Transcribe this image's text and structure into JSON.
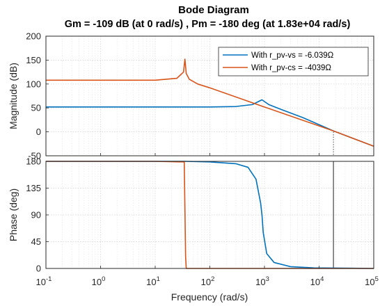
{
  "chart_data": {
    "type": "line",
    "title": "Bode Diagram",
    "subtitle": "Gm = -109 dB (at 0 rad/s) ,  Pm = -180 deg (at 1.83e+04 rad/s)",
    "xlabel": "Frequency  (rad/s)",
    "x_scale": "log",
    "xlim": [
      0.1,
      100000
    ],
    "x_tick_labels": [
      {
        "base": "10",
        "exp": "-1"
      },
      {
        "base": "10",
        "exp": "0"
      },
      {
        "base": "10",
        "exp": "1"
      },
      {
        "base": "10",
        "exp": "2"
      },
      {
        "base": "10",
        "exp": "3"
      },
      {
        "base": "10",
        "exp": "4"
      },
      {
        "base": "10",
        "exp": "5"
      }
    ],
    "grid": true,
    "legend_position": "top-right",
    "colors": {
      "series1": "#0072BD",
      "series2": "#D95319",
      "marker": "#333333",
      "grid": "#cfcfcf"
    },
    "panels": [
      {
        "name": "magnitude",
        "ylabel": "Magnitude (dB)",
        "ylim": [
          -50,
          200
        ],
        "yticks": [
          "-50",
          "0",
          "50",
          "100",
          "150",
          "200"
        ],
        "series": [
          {
            "name": "With r_pv-vs = -6.039Ω",
            "x": [
              0.1,
              1,
              10,
              100,
              300,
              600,
              900,
              1200,
              2000,
              5000,
              18300,
              100000
            ],
            "y": [
              52,
              52,
              52,
              52,
              53,
              57,
              67,
              57,
              47,
              30,
              2,
              -30
            ]
          },
          {
            "name": "With r_pv-cs = -4039Ω",
            "x": [
              0.1,
              1,
              10,
              25,
              33,
              35,
              37,
              42,
              60,
              100,
              1000,
              18300,
              100000
            ],
            "y": [
              108,
              108,
              108,
              112,
              125,
              152,
              122,
              110,
              100,
              92,
              52,
              2,
              -30
            ]
          }
        ]
      },
      {
        "name": "phase",
        "ylabel": "Phase (deg)",
        "ylim": [
          0,
          180
        ],
        "yticks": [
          "0",
          "45",
          "90",
          "135",
          "180"
        ],
        "series": [
          {
            "name": "With r_pv-vs = -6.039Ω",
            "x": [
              0.1,
              10,
              35,
              100,
              300,
              500,
              700,
              850,
              900,
              950,
              1100,
              1500,
              3000,
              8000,
              100000
            ],
            "y": [
              180,
              180,
              180,
              179,
              176,
              170,
              150,
              110,
              90,
              60,
              25,
              10,
              3,
              1,
              0
            ]
          },
          {
            "name": "With r_pv-cs = -4039Ω",
            "x": [
              0.1,
              10,
              34,
              35,
              36,
              37,
              100,
              100000
            ],
            "y": [
              180,
              180,
              179,
              100,
              20,
              0,
              0,
              0
            ]
          }
        ]
      }
    ],
    "markers": [
      {
        "panel": "magnitude",
        "type": "dotted-drop",
        "x": 18300,
        "y": 0
      },
      {
        "panel": "phase",
        "type": "vertical-line",
        "x": 18300
      }
    ]
  }
}
